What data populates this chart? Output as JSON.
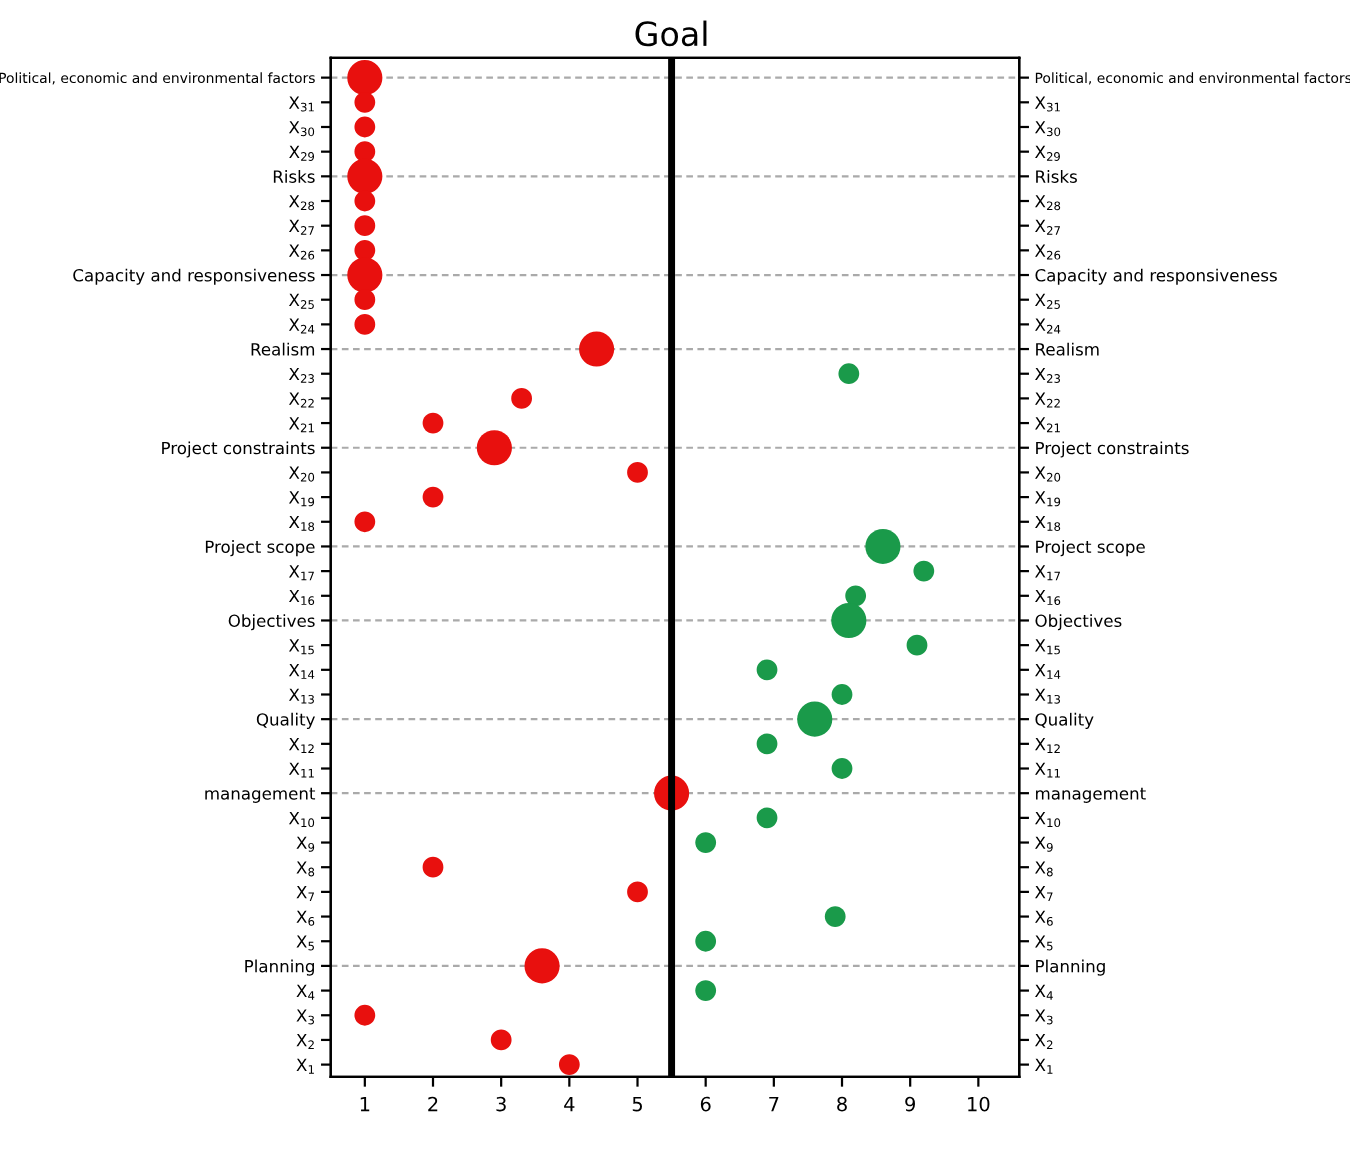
{
  "chart_data": {
    "type": "bubble",
    "orientation": "horizontal",
    "categories": [
      "Political, economic and environmental factors",
      "X$_{31}$",
      "X$_{30}$",
      "X$_{29}$",
      "Risks",
      "X$_{28}$",
      "X$_{27}$",
      "X$_{26}$",
      "Capacity and responsiveness",
      "X$_{25}$",
      "X$_{24}$",
      "Realism",
      "X$_{23}$",
      "X$_{22}$",
      "X$_{21}$",
      "Project constraints",
      "X$_{20}$",
      "X$_{19}$",
      "X$_{18}$",
      "Project scope",
      "X$_{17}$",
      "X$_{16}$",
      "Objectives",
      "X$_{15}$",
      "X$_{14}$",
      "X$_{13}$",
      "Quality",
      "X$_{12}$",
      "X$_{11}$",
      "management",
      "X$_{10}$",
      "X$_{9}$",
      "X$_{8}$",
      "X$_{7}$",
      "X$_{6}$",
      "X$_{5}$",
      "Planning",
      "X$_{4}$",
      "X$_{3}$",
      "X$_{2}$",
      "X$_{1}$"
    ],
    "series": [
      {
        "color": "#e8100e",
        "values": [
          1,
          1,
          1,
          1,
          1,
          1,
          1,
          1,
          1,
          1,
          1,
          4.4,
          null,
          3.3,
          2,
          2.9,
          5,
          2,
          1,
          null,
          null,
          null,
          null,
          null,
          null,
          null,
          null,
          null,
          null,
          5.5,
          null,
          null,
          2,
          5,
          null,
          null,
          3.6,
          null,
          1,
          3,
          4
        ],
        "sizes": [
          1,
          0.35,
          0.35,
          0.35,
          1,
          0.35,
          0.35,
          0.35,
          1,
          0.35,
          0.35,
          1,
          null,
          0.35,
          0.35,
          1,
          0.35,
          0.35,
          0.35,
          null,
          null,
          null,
          null,
          null,
          null,
          null,
          null,
          null,
          null,
          1,
          null,
          null,
          0.35,
          0.35,
          null,
          null,
          1,
          null,
          0.35,
          0.35,
          0.35
        ]
      },
      {
        "color": "#1a9a4a",
        "values": [
          null,
          null,
          null,
          null,
          null,
          null,
          null,
          null,
          null,
          null,
          null,
          null,
          8.1,
          null,
          null,
          null,
          null,
          null,
          null,
          8.6,
          9.2,
          8.2,
          8.1,
          9.1,
          6.9,
          8.0,
          7.6,
          6.9,
          8.0,
          null,
          6.9,
          6.0,
          null,
          null,
          7.9,
          6.0,
          null,
          6.0,
          null,
          null,
          null
        ],
        "sizes": [
          null,
          null,
          null,
          null,
          null,
          null,
          null,
          null,
          null,
          null,
          null,
          null,
          0.35,
          null,
          null,
          null,
          null,
          null,
          null,
          1,
          0.35,
          0.35,
          1,
          0.35,
          0.35,
          0.35,
          1,
          0.35,
          0.35,
          null,
          0.35,
          0.35,
          null,
          null,
          0.35,
          0.35,
          null,
          0.35,
          null,
          null,
          null
        ]
      }
    ],
    "xlim": [
      0.5,
      10.6
    ],
    "xticks": [
      1,
      2,
      3,
      4,
      5,
      6,
      7,
      8,
      9,
      10
    ],
    "ref_lines": [
      {
        "axis": "x",
        "value": 5.5,
        "label": "Goal",
        "color": "#000000",
        "line_style": "solid"
      },
      {
        "axis": "y",
        "value": "Political, economic and environmental factors",
        "color": "#aaaaaa",
        "line_style": "dashed"
      },
      {
        "axis": "y",
        "value": "Risks",
        "color": "#aaaaaa",
        "line_style": "dashed"
      },
      {
        "axis": "y",
        "value": "Capacity and responsiveness",
        "color": "#aaaaaa",
        "line_style": "dashed"
      },
      {
        "axis": "y",
        "value": "Realism",
        "color": "#aaaaaa",
        "line_style": "dashed"
      },
      {
        "axis": "y",
        "value": "Project constraints",
        "color": "#aaaaaa",
        "line_style": "dashed"
      },
      {
        "axis": "y",
        "value": "Project scope",
        "color": "#aaaaaa",
        "line_style": "dashed"
      },
      {
        "axis": "y",
        "value": "Objectives",
        "color": "#aaaaaa",
        "line_style": "dashed"
      },
      {
        "axis": "y",
        "value": "Quality",
        "color": "#aaaaaa",
        "line_style": "dashed"
      },
      {
        "axis": "y",
        "value": "management",
        "color": "#aaaaaa",
        "line_style": "dashed"
      },
      {
        "axis": "y",
        "value": "Planning",
        "color": "#aaaaaa",
        "line_style": "dashed"
      }
    ],
    "grid": false,
    "legend": false
  }
}
